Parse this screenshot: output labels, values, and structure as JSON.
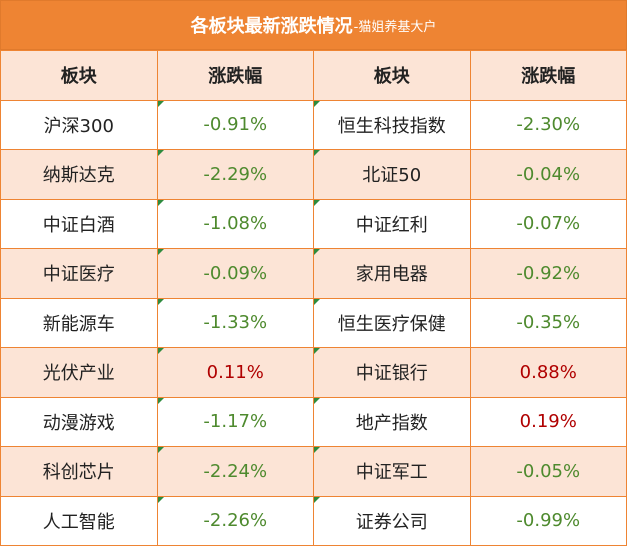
{
  "header": {
    "title": "各板块最新涨跌情况",
    "subtitle": "-猫姐养基大户"
  },
  "table": {
    "columns": [
      "板块",
      "涨跌幅",
      "板块",
      "涨跌幅"
    ],
    "rows": [
      [
        "沪深300",
        "-0.91%",
        "恒生科技指数",
        "-2.30%"
      ],
      [
        "纳斯达克",
        "-2.29%",
        "北证50",
        "-0.04%"
      ],
      [
        "中证白酒",
        "-1.08%",
        "中证红利",
        "-0.07%"
      ],
      [
        "中证医疗",
        "-0.09%",
        "家用电器",
        "-0.92%"
      ],
      [
        "新能源车",
        "-1.33%",
        "恒生医疗保健",
        "-0.35%"
      ],
      [
        "光伏产业",
        "0.11%",
        "中证银行",
        "0.88%"
      ],
      [
        "动漫游戏",
        "-1.17%",
        "地产指数",
        "0.19%"
      ],
      [
        "科创芯片",
        "-2.24%",
        "中证军工",
        "-0.05%"
      ],
      [
        "人工智能",
        "-2.26%",
        "证券公司",
        "-0.99%"
      ]
    ]
  }
}
